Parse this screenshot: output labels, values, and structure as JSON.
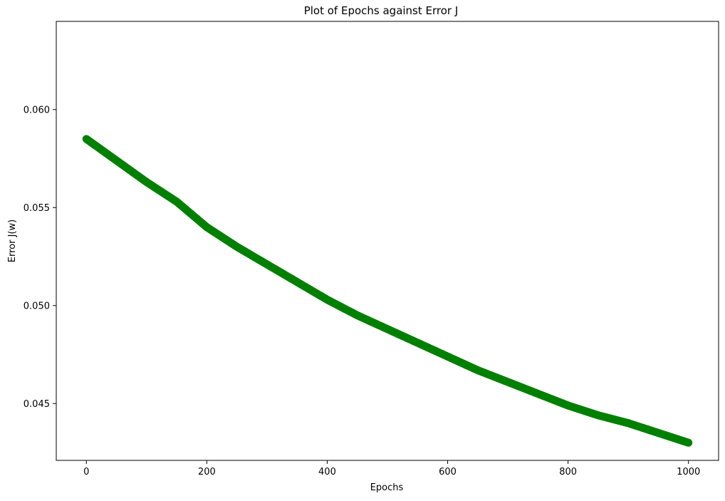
{
  "chart_data": {
    "type": "scatter",
    "title": "Plot of Epochs against Error J",
    "xlabel": "Epochs",
    "ylabel": "Error J(w)",
    "xlim": [
      -50,
      1050
    ],
    "ylim": [
      0.0421,
      0.0645
    ],
    "xticks": [
      0,
      200,
      400,
      600,
      800,
      1000
    ],
    "xtick_labels": [
      "0",
      "200",
      "400",
      "600",
      "800",
      "1000"
    ],
    "yticks": [
      0.045,
      0.05,
      0.055,
      0.06
    ],
    "ytick_labels": [
      "0.045",
      "0.050",
      "0.055",
      "0.060"
    ],
    "grid": false,
    "legend": "none",
    "marker_color": "#008000",
    "series": [
      {
        "x": [
          0,
          50,
          100,
          150,
          200,
          250,
          300,
          350,
          400,
          450,
          500,
          550,
          600,
          650,
          700,
          750,
          800,
          850,
          900,
          950,
          1000
        ],
        "values": [
          0.0585,
          0.0574,
          0.0563,
          0.0553,
          0.054,
          0.053,
          0.0521,
          0.0512,
          0.0503,
          0.0495,
          0.0488,
          0.0481,
          0.0474,
          0.0467,
          0.0461,
          0.0455,
          0.0449,
          0.0444,
          0.044,
          0.0435,
          0.043
        ],
        "total_points": 1001
      }
    ]
  }
}
